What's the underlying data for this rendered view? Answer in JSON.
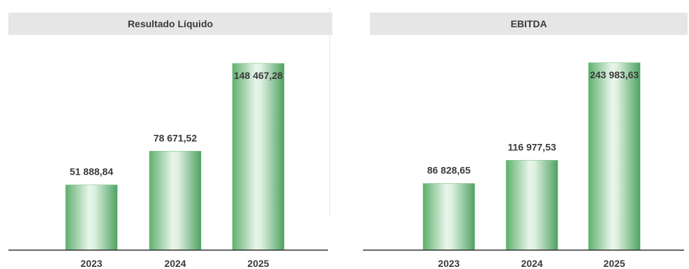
{
  "charts": [
    {
      "title": "Resultado Líquido"
    },
    {
      "title": "EBITDA"
    }
  ],
  "chart_data": [
    {
      "type": "bar",
      "title": "Resultado Líquido",
      "categories": [
        "2023",
        "2024",
        "2025"
      ],
      "values": [
        51888.84,
        78671.52,
        148467.28
      ],
      "value_labels": [
        "51 888,84",
        "78 671,52",
        "148 467,28"
      ],
      "xlabel": "",
      "ylabel": "",
      "ylim": [
        0,
        160000
      ],
      "grid": false,
      "bar_color": "#7cc48a"
    },
    {
      "type": "bar",
      "title": "EBITDA",
      "categories": [
        "2023",
        "2024",
        "2025"
      ],
      "values": [
        86828.65,
        116977.53,
        243983.63
      ],
      "value_labels": [
        "86 828,65",
        "116 977,53",
        "243 983,63"
      ],
      "xlabel": "",
      "ylabel": "",
      "ylim": [
        0,
        262000
      ],
      "grid": false,
      "bar_color": "#7cc48a"
    }
  ]
}
